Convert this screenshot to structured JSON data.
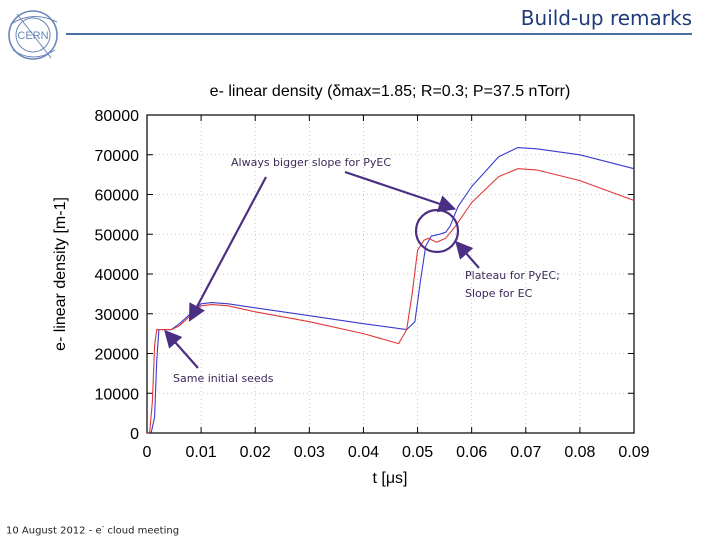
{
  "slide": {
    "title": "Build-up remarks",
    "footer_left": "10 August 2012  -  e",
    "footer_sup": "-",
    "footer_right": " cloud meeting",
    "logo_text": "CERN"
  },
  "chart_data": {
    "type": "line",
    "title": "e- linear density (δmax=1.85; R=0.3; P=37.5 nTorr)",
    "xlabel": "t [μs]",
    "ylabel": "e- linear density [m-1]",
    "xlim": [
      0,
      0.09
    ],
    "ylim": [
      0,
      80000
    ],
    "xticks": [
      "0",
      "0.01",
      "0.02",
      "0.03",
      "0.04",
      "0.05",
      "0.06",
      "0.07",
      "0.08",
      "0.09"
    ],
    "yticks": [
      "0",
      "10000",
      "20000",
      "30000",
      "40000",
      "50000",
      "60000",
      "70000",
      "80000"
    ],
    "grid": true,
    "series": [
      {
        "color": "#3b3bd0",
        "x": [
          0,
          0.0008,
          0.0014,
          0.0018,
          0.0022,
          0.003,
          0.0045,
          0.006,
          0.008,
          0.01,
          0.012,
          0.015,
          0.02,
          0.03,
          0.04,
          0.048,
          0.0495,
          0.0505,
          0.0515,
          0.0525,
          0.054,
          0.0552,
          0.056,
          0.0575,
          0.06,
          0.065,
          0.0685,
          0.072,
          0.08,
          0.09
        ],
        "y": [
          0,
          200,
          4000,
          18000,
          26000,
          26000,
          26000,
          27500,
          30000,
          32500,
          32800,
          32500,
          31500,
          29500,
          27500,
          26000,
          28000,
          38000,
          47000,
          49500,
          50000,
          50500,
          52000,
          57000,
          62000,
          69500,
          71800,
          71500,
          70000,
          66500
        ]
      },
      {
        "color": "#e03838",
        "x": [
          0,
          0.0005,
          0.001,
          0.0014,
          0.0018,
          0.0025,
          0.0045,
          0.006,
          0.008,
          0.01,
          0.012,
          0.015,
          0.02,
          0.03,
          0.04,
          0.0465,
          0.048,
          0.049,
          0.05,
          0.0512,
          0.052,
          0.0535,
          0.0552,
          0.057,
          0.06,
          0.065,
          0.0685,
          0.072,
          0.08,
          0.09
        ],
        "y": [
          0,
          200,
          8000,
          22000,
          26000,
          26000,
          26000,
          27000,
          29500,
          32000,
          32300,
          32000,
          30500,
          28000,
          25000,
          22500,
          26000,
          35000,
          46000,
          48500,
          49000,
          48000,
          49000,
          52000,
          58000,
          64500,
          66500,
          66200,
          63500,
          58500
        ]
      }
    ],
    "annotations": [
      "Always bigger slope for PyEC",
      "Plateau for PyEC;",
      "Slope for EC",
      "Same initial seeds"
    ]
  }
}
